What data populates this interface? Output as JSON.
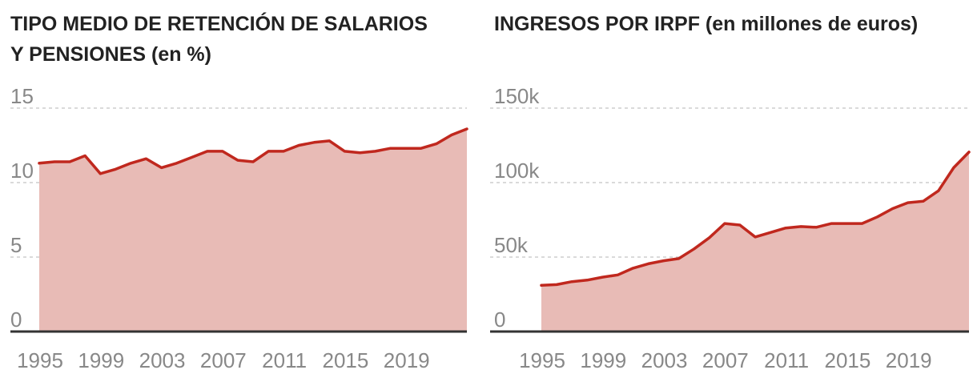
{
  "chart_data": [
    {
      "type": "area",
      "title": "TIPO MEDIO DE RETENCIÓN DE SALARIOS Y PENSIONES (en %)",
      "title_lines": [
        "TIPO MEDIO DE RETENCIÓN DE SALARIOS",
        "Y PENSIONES (en %)"
      ],
      "xlabel": "",
      "ylabel": "",
      "ylim": [
        0,
        15
      ],
      "xlim": [
        1995,
        2023
      ],
      "y_ticks": [
        0,
        5,
        10,
        15
      ],
      "y_tick_labels": [
        "0",
        "5",
        "10",
        "15"
      ],
      "x_ticks": [
        1995,
        1999,
        2003,
        2007,
        2011,
        2015,
        2019
      ],
      "x_tick_labels": [
        "1995",
        "1999",
        "2003",
        "2007",
        "2011",
        "2015",
        "2019"
      ],
      "grid": true,
      "series": [
        {
          "name": "Tipo medio de retención",
          "x": [
            1995,
            1996,
            1997,
            1998,
            1999,
            2000,
            2001,
            2002,
            2003,
            2004,
            2005,
            2006,
            2007,
            2008,
            2009,
            2010,
            2011,
            2012,
            2013,
            2014,
            2015,
            2016,
            2017,
            2018,
            2019,
            2020,
            2021,
            2022,
            2023
          ],
          "values": [
            11.3,
            11.4,
            11.4,
            11.8,
            10.6,
            10.9,
            11.3,
            11.6,
            11.0,
            11.3,
            11.7,
            12.1,
            12.1,
            11.5,
            11.4,
            12.1,
            12.1,
            12.5,
            12.7,
            12.8,
            12.1,
            12.0,
            12.1,
            12.3,
            12.3,
            12.3,
            12.6,
            13.2,
            13.6
          ]
        }
      ],
      "colors": {
        "line": "#c0281e",
        "fill": "#e8bbb6",
        "grid": "#c4c4c4",
        "baseline": "#333333"
      }
    },
    {
      "type": "area",
      "title": "INGRESOS POR IRPF (en millones de euros)",
      "title_lines": [
        "INGRESOS POR IRPF (en millones de euros)"
      ],
      "xlabel": "",
      "ylabel": "",
      "ylim": [
        0,
        150000
      ],
      "xlim": [
        1995,
        2023
      ],
      "y_ticks": [
        0,
        50000,
        100000,
        150000
      ],
      "y_tick_labels": [
        "0",
        "50k",
        "100k",
        "150k"
      ],
      "x_ticks": [
        1995,
        1999,
        2003,
        2007,
        2011,
        2015,
        2019
      ],
      "x_tick_labels": [
        "1995",
        "1999",
        "2003",
        "2007",
        "2011",
        "2015",
        "2019"
      ],
      "grid": true,
      "series": [
        {
          "name": "Ingresos por IRPF",
          "x": [
            1995,
            1996,
            1997,
            1998,
            1999,
            2000,
            2001,
            2002,
            2003,
            2004,
            2005,
            2006,
            2007,
            2008,
            2009,
            2010,
            2011,
            2012,
            2013,
            2014,
            2015,
            2016,
            2017,
            2018,
            2019,
            2020,
            2021,
            2022,
            2023
          ],
          "values": [
            31000,
            31500,
            33500,
            34500,
            36500,
            38000,
            42500,
            45500,
            47500,
            49000,
            55500,
            63000,
            72500,
            71500,
            63500,
            66500,
            69500,
            70500,
            70000,
            72500,
            72500,
            72500,
            77000,
            82500,
            86500,
            87500,
            94500,
            110000,
            120500
          ]
        }
      ],
      "colors": {
        "line": "#c0281e",
        "fill": "#e8bbb6",
        "grid": "#c4c4c4",
        "baseline": "#333333"
      }
    }
  ]
}
